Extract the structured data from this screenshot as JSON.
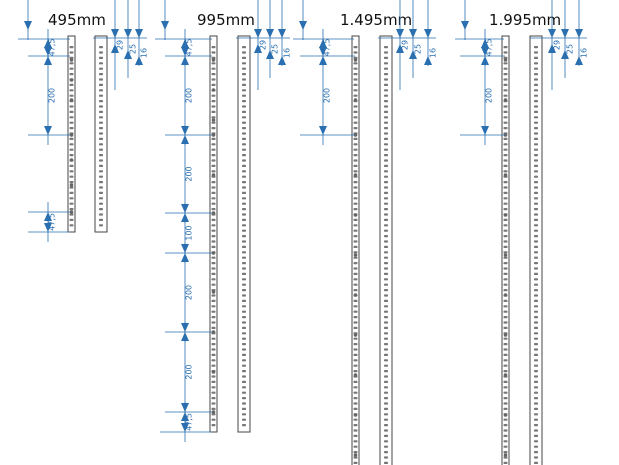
{
  "rails": [
    {
      "title": "495mm",
      "dims": [
        "47,5",
        "200",
        "47,5"
      ],
      "side_dims": [
        "29",
        "25",
        "16"
      ]
    },
    {
      "title": "995mm",
      "dims": [
        "47,5",
        "200",
        "200",
        "100",
        "200",
        "200",
        "47,5"
      ],
      "side_dims": [
        "29",
        "25",
        "16"
      ]
    },
    {
      "title": "1.495mm",
      "dims": [
        "47,5",
        "200"
      ],
      "side_dims": [
        "29",
        "25",
        "16"
      ]
    },
    {
      "title": "1.995mm",
      "dims": [
        "47,5",
        "200"
      ],
      "side_dims": [
        "29",
        "25",
        "16"
      ]
    }
  ]
}
